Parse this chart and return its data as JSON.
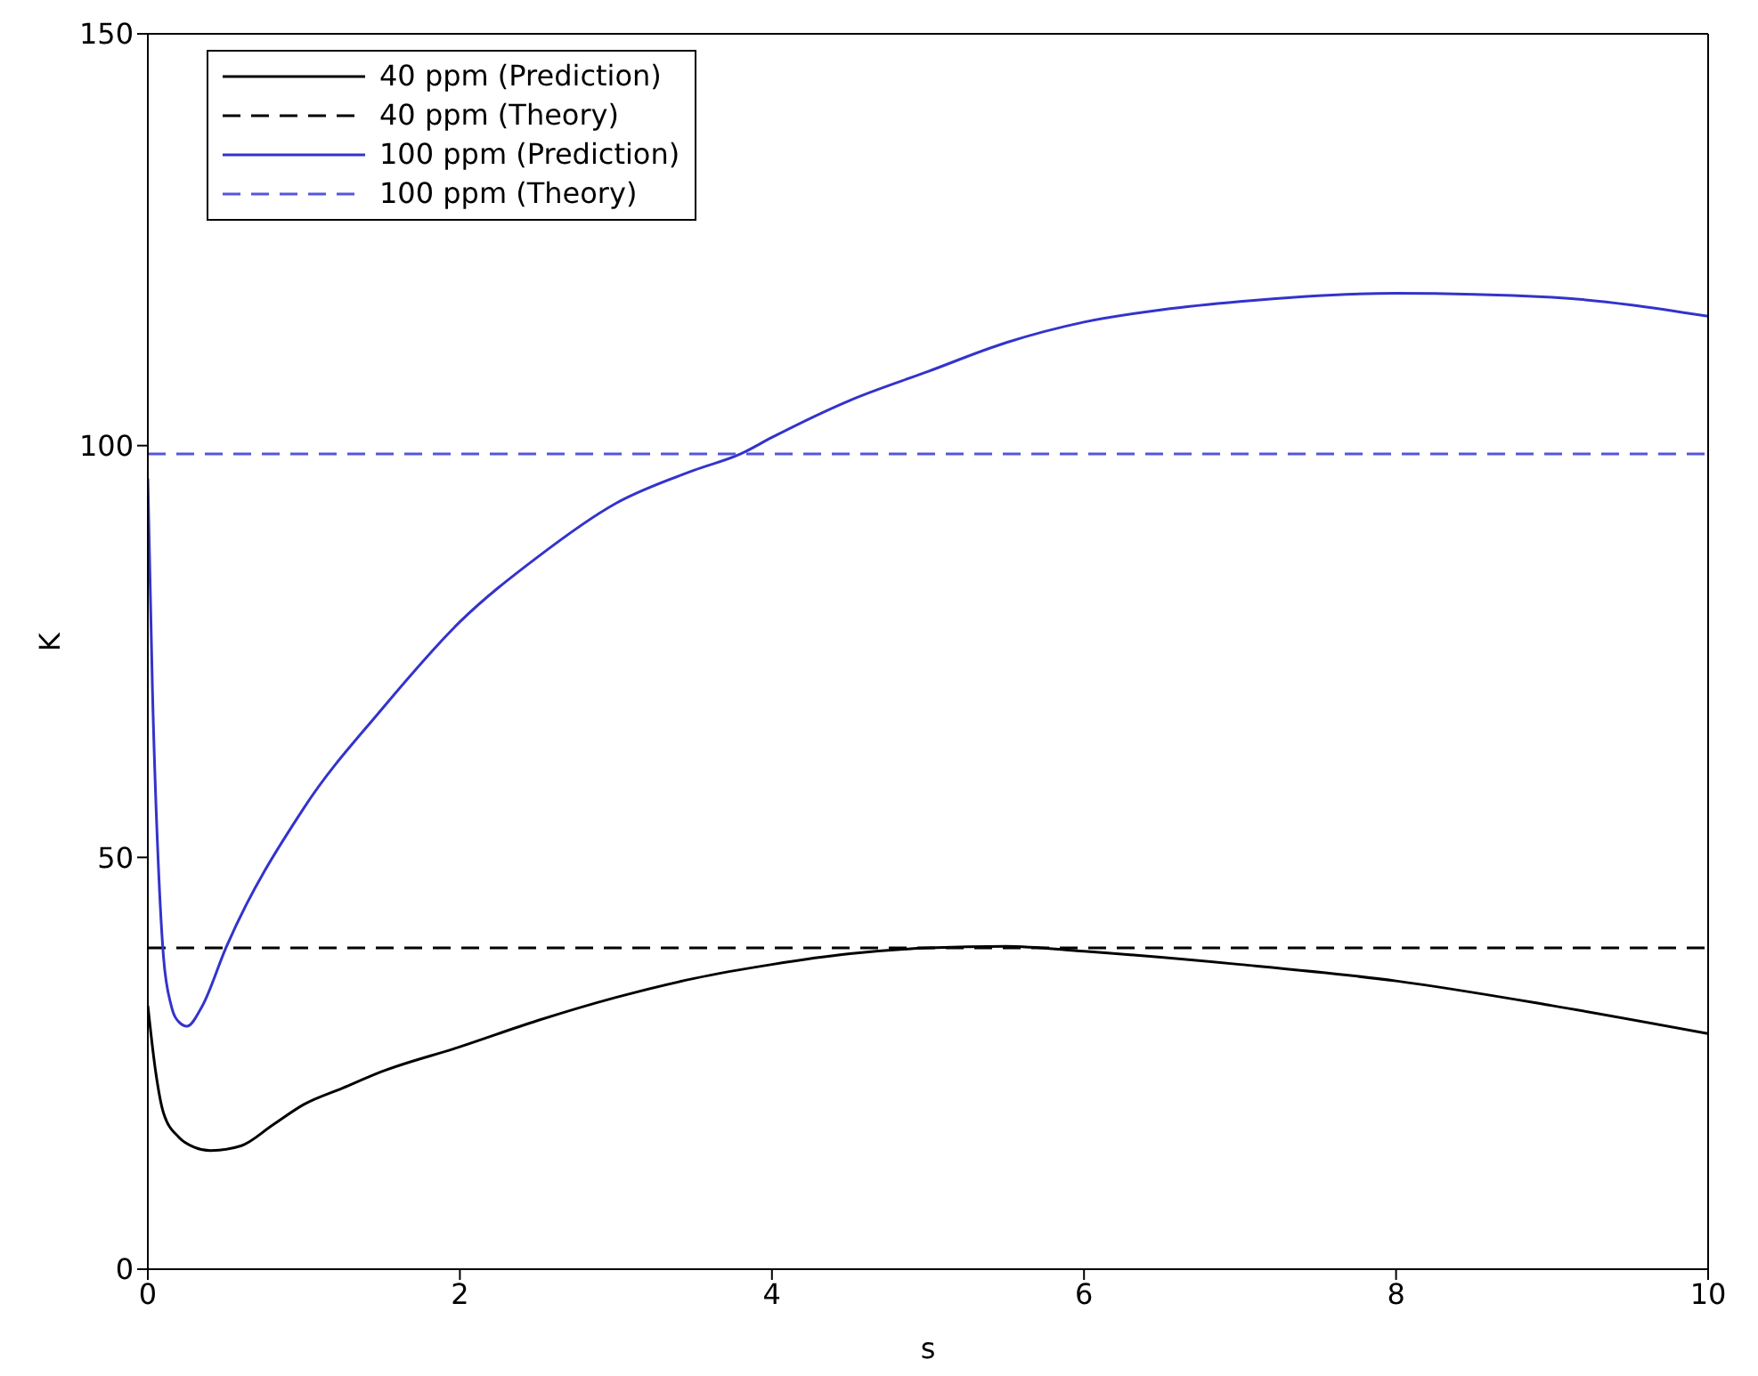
{
  "chart_data": {
    "type": "line",
    "xlabel": "s",
    "ylabel": "K",
    "xlim": [
      0,
      10
    ],
    "xticks": [
      0,
      2,
      4,
      6,
      8,
      10
    ],
    "ylim": [
      0,
      150
    ],
    "yticks": [
      0,
      50,
      100,
      150
    ],
    "legend": "top left",
    "marker": "none",
    "series": [
      {
        "name": "40 ppm (Prediction)",
        "color": "#000000",
        "line_style": "solid",
        "x": [
          0,
          0.05,
          0.1,
          0.2,
          0.3,
          0.4,
          0.6,
          0.8,
          1,
          1.25,
          1.5,
          2,
          2.5,
          3,
          3.5,
          4,
          4.5,
          5,
          5.5,
          6,
          7,
          8,
          9,
          10
        ],
        "values": [
          32,
          24,
          19,
          16,
          14.8,
          14.4,
          15,
          17.5,
          20,
          22,
          24,
          27,
          30.2,
          33,
          35.3,
          37,
          38.3,
          39,
          39.2,
          38.6,
          37,
          35,
          32,
          28.6
        ]
      },
      {
        "name": "40 ppm (Theory)",
        "color": "#000000",
        "line_style": "dashed",
        "x": [
          0,
          10
        ],
        "values": [
          39,
          39
        ]
      },
      {
        "name": "100 ppm (Prediction)",
        "color": "#3333cc",
        "line_style": "solid",
        "x": [
          0,
          0.03,
          0.07,
          0.1,
          0.15,
          0.2,
          0.25,
          0.35,
          0.5,
          1,
          1.5,
          2,
          2.5,
          3,
          3.5,
          3.8,
          4,
          4.5,
          5,
          5.5,
          6,
          6.5,
          7,
          8,
          9,
          10
        ],
        "values": [
          96,
          70,
          48,
          38,
          32,
          30,
          29.5,
          32,
          39,
          56,
          68,
          78.6,
          86.5,
          93,
          97,
          99,
          101,
          105.5,
          109,
          112.5,
          115,
          116.5,
          117.5,
          118.5,
          118,
          115.7
        ]
      },
      {
        "name": "100 ppm (Theory)",
        "color": "#5555dd",
        "line_style": "dashed",
        "x": [
          0,
          10
        ],
        "values": [
          99,
          99
        ]
      }
    ]
  }
}
